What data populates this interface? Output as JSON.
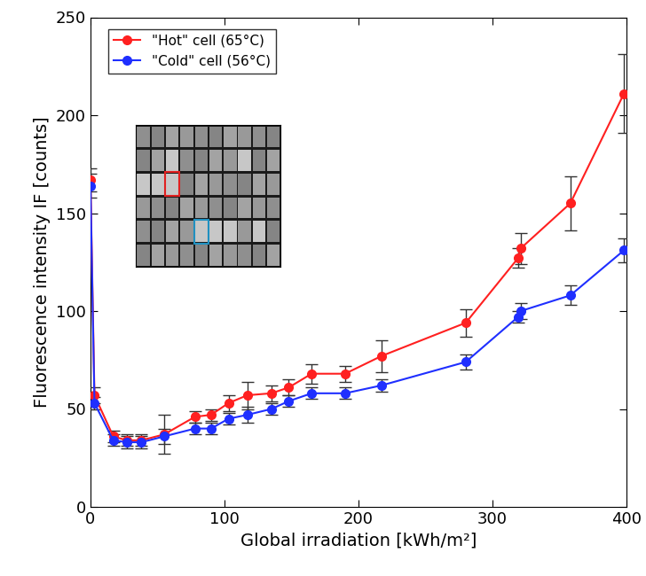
{
  "chart_data": {
    "type": "line",
    "x_label": "Global irradiation [kWh/m²]",
    "y_label": "Fluorescence intensity IF [counts]",
    "x": [
      0,
      3,
      17,
      27,
      38,
      55,
      78,
      90,
      103,
      117,
      135,
      148,
      165,
      190,
      217,
      280,
      319,
      321,
      358,
      398
    ],
    "series": [
      {
        "name": "\"Hot\" cell (65°C)",
        "color": "#ff2020",
        "marker": "o",
        "line_style": "solid",
        "values": [
          167,
          57,
          36,
          34,
          34,
          37,
          46,
          47,
          53,
          57,
          58,
          61,
          68,
          68,
          77,
          94,
          127,
          132,
          155,
          211
        ],
        "errors": [
          6,
          4,
          3,
          3,
          3,
          10,
          3,
          3,
          4,
          7,
          4,
          4,
          5,
          4,
          8,
          7,
          5,
          8,
          14,
          20
        ]
      },
      {
        "name": "\"Cold\" cell (56°C)",
        "color": "#1f2fff",
        "marker": "o",
        "line_style": "solid",
        "values": [
          164,
          53,
          34,
          33,
          33,
          36,
          40,
          40,
          45,
          47,
          50,
          54,
          58,
          58,
          62,
          74,
          97,
          100,
          108,
          131
        ],
        "errors": [
          6,
          3,
          3,
          3,
          3,
          4,
          3,
          3,
          3,
          4,
          3,
          3,
          3,
          3,
          3,
          4,
          3,
          4,
          5,
          6
        ]
      }
    ],
    "xlim": [
      0,
      400
    ],
    "xticks": [
      0,
      100,
      200,
      300,
      400
    ],
    "ylim": [
      0,
      250
    ],
    "yticks": [
      0,
      50,
      100,
      150,
      200,
      250
    ],
    "legend": "upper left",
    "grid": false
  }
}
